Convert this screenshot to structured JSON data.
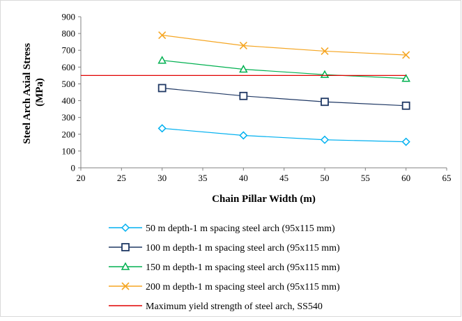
{
  "chart_data": {
    "type": "line",
    "xlabel": "Chain Pillar Width (m)",
    "ylabel_lines": [
      "Steel Arch Axial Stress",
      "(MPa)"
    ],
    "xlim": [
      20,
      65
    ],
    "ylim": [
      0,
      900
    ],
    "x_ticks": [
      20,
      25,
      30,
      35,
      40,
      45,
      50,
      55,
      60,
      65
    ],
    "y_ticks": [
      0,
      100,
      200,
      300,
      400,
      500,
      600,
      700,
      800,
      900
    ],
    "grid": false,
    "legend_placement": "bottom",
    "series": [
      {
        "name": "50 m depth-1 m spacing steel arch (95x115 mm)",
        "color": "#00b0f0",
        "marker": "diamond",
        "x": [
          30,
          40,
          50,
          60
        ],
        "y": [
          235,
          193,
          167,
          155
        ]
      },
      {
        "name": "100 m depth-1 m spacing steel arch (95x115 mm)",
        "color": "#1f3864",
        "marker": "square",
        "x": [
          30,
          40,
          50,
          60
        ],
        "y": [
          475,
          428,
          393,
          370
        ]
      },
      {
        "name": "150 m depth-1 m spacing steel arch (95x115 mm)",
        "color": "#00b050",
        "marker": "triangle",
        "x": [
          30,
          40,
          50,
          60
        ],
        "y": [
          640,
          587,
          555,
          532
        ]
      },
      {
        "name": "200 m depth-1 m spacing steel arch (95x115 mm)",
        "color": "#f5a623",
        "marker": "x",
        "x": [
          30,
          40,
          50,
          60
        ],
        "y": [
          790,
          728,
          695,
          672
        ]
      },
      {
        "name": "Maximum yield strength of steel arch, SS540",
        "color": "#e00000",
        "marker": "none",
        "x": [
          20,
          60
        ],
        "y": [
          550,
          550
        ]
      }
    ]
  }
}
